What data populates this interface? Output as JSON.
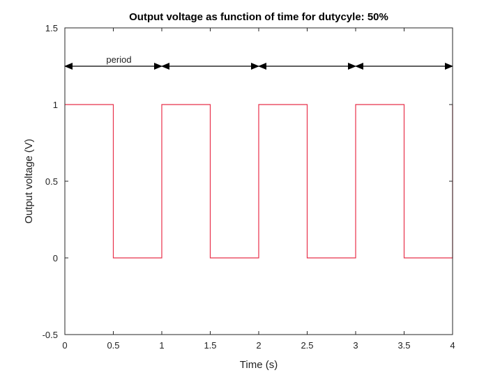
{
  "chart_data": {
    "type": "line",
    "title": "Output voltage as function of time for dutycyle: 50%",
    "xlabel": "Time (s)",
    "ylabel": "Output voltage (V)",
    "xlim": [
      0,
      4
    ],
    "ylim": [
      -0.5,
      1.5
    ],
    "xticks": [
      0,
      0.5,
      1,
      1.5,
      2,
      2.5,
      3,
      3.5,
      4
    ],
    "xtick_labels": [
      "0",
      "0.5",
      "1",
      "1.5",
      "2",
      "2.5",
      "3",
      "3.5",
      "4"
    ],
    "yticks": [
      -0.5,
      0,
      0.5,
      1,
      1.5
    ],
    "ytick_labels": [
      "-0.5",
      "0",
      "0.5",
      "1",
      "1.5"
    ],
    "grid": false,
    "series": [
      {
        "color": "#e8304a",
        "x": [
          0,
          0.5,
          0.5,
          1,
          1,
          1.5,
          1.5,
          2,
          2,
          2.5,
          2.5,
          3,
          3,
          3.5,
          3.5,
          4,
          4
        ],
        "y": [
          1,
          1,
          0,
          0,
          1,
          1,
          0,
          0,
          1,
          1,
          0,
          0,
          1,
          1,
          0,
          0,
          1
        ]
      }
    ],
    "annotations": {
      "arrow_y": 1.25,
      "arrow_color": "#000000",
      "arrows": [
        {
          "from": 0,
          "to": 1
        },
        {
          "from": 1,
          "to": 2
        },
        {
          "from": 2,
          "to": 3
        },
        {
          "from": 3,
          "to": 4
        }
      ],
      "label": {
        "text": "period",
        "x": 0.5,
        "y": 1.25
      }
    }
  }
}
